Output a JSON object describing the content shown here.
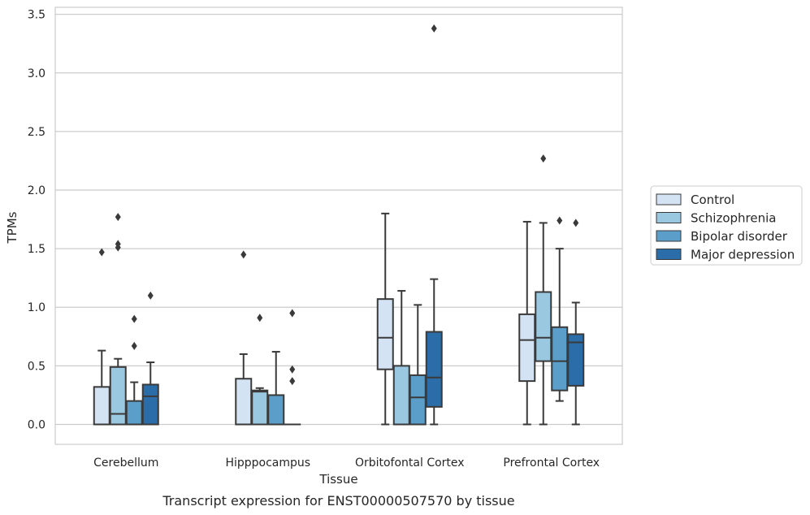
{
  "chart_data": {
    "type": "box",
    "xlabel": "Tissue",
    "ylabel": "TPMs",
    "caption": "Transcript expression for ENST00000507570 by tissue",
    "ylim": [
      -0.17,
      3.56
    ],
    "yticks": [
      0.0,
      0.5,
      1.0,
      1.5,
      2.0,
      2.5,
      3.0,
      3.5
    ],
    "ytick_labels": [
      "0.0",
      "0.5",
      "1.0",
      "1.5",
      "2.0",
      "2.5",
      "3.0",
      "3.5"
    ],
    "grid": "horizontal",
    "legend_position": "right",
    "categories": [
      "Cerebellum",
      "Hipppocampus",
      "Orbitofontal Cortex",
      "Prefrontal Cortex"
    ],
    "series": [
      {
        "name": "Control",
        "color": "#d3e3f3",
        "boxes": [
          {
            "q1": 0.0,
            "median": 0.0,
            "q3": 0.32,
            "whisker_low": 0.0,
            "whisker_high": 0.63,
            "outliers": [
              1.47
            ]
          },
          {
            "q1": 0.0,
            "median": 0.0,
            "q3": 0.39,
            "whisker_low": 0.0,
            "whisker_high": 0.6,
            "outliers": [
              1.45
            ]
          },
          {
            "q1": 0.47,
            "median": 0.74,
            "q3": 1.07,
            "whisker_low": 0.0,
            "whisker_high": 1.8,
            "outliers": []
          },
          {
            "q1": 0.37,
            "median": 0.72,
            "q3": 0.94,
            "whisker_low": 0.0,
            "whisker_high": 1.73,
            "outliers": []
          }
        ]
      },
      {
        "name": "Schizophrenia",
        "color": "#9ac8e0",
        "boxes": [
          {
            "q1": 0.0,
            "median": 0.09,
            "q3": 0.49,
            "whisker_low": 0.0,
            "whisker_high": 0.56,
            "outliers": [
              1.51,
              1.54,
              1.77
            ]
          },
          {
            "q1": 0.0,
            "median": 0.28,
            "q3": 0.29,
            "whisker_low": 0.0,
            "whisker_high": 0.31,
            "outliers": [
              0.91
            ]
          },
          {
            "q1": 0.0,
            "median": 0.0,
            "q3": 0.5,
            "whisker_low": 0.0,
            "whisker_high": 1.14,
            "outliers": []
          },
          {
            "q1": 0.54,
            "median": 0.74,
            "q3": 1.13,
            "whisker_low": 0.0,
            "whisker_high": 1.72,
            "outliers": [
              2.27
            ]
          }
        ]
      },
      {
        "name": "Bipolar disorder",
        "color": "#5a9ec9",
        "boxes": [
          {
            "q1": 0.0,
            "median": 0.0,
            "q3": 0.2,
            "whisker_low": 0.0,
            "whisker_high": 0.36,
            "outliers": [
              0.67,
              0.9
            ]
          },
          {
            "q1": 0.0,
            "median": 0.0,
            "q3": 0.25,
            "whisker_low": 0.0,
            "whisker_high": 0.62,
            "outliers": []
          },
          {
            "q1": 0.0,
            "median": 0.23,
            "q3": 0.42,
            "whisker_low": 0.0,
            "whisker_high": 1.02,
            "outliers": []
          },
          {
            "q1": 0.29,
            "median": 0.54,
            "q3": 0.83,
            "whisker_low": 0.2,
            "whisker_high": 1.5,
            "outliers": [
              1.74
            ]
          }
        ]
      },
      {
        "name": "Major depression",
        "color": "#2b6da8",
        "boxes": [
          {
            "q1": 0.0,
            "median": 0.24,
            "q3": 0.34,
            "whisker_low": 0.0,
            "whisker_high": 0.53,
            "outliers": [
              1.1
            ]
          },
          {
            "q1": 0.0,
            "median": 0.0,
            "q3": 0.0,
            "whisker_low": 0.0,
            "whisker_high": 0.0,
            "outliers": [
              0.37,
              0.47,
              0.95
            ]
          },
          {
            "q1": 0.15,
            "median": 0.4,
            "q3": 0.79,
            "whisker_low": 0.0,
            "whisker_high": 1.24,
            "outliers": [
              3.38
            ]
          },
          {
            "q1": 0.33,
            "median": 0.7,
            "q3": 0.77,
            "whisker_low": 0.0,
            "whisker_high": 1.04,
            "outliers": [
              1.72
            ]
          }
        ]
      }
    ]
  }
}
